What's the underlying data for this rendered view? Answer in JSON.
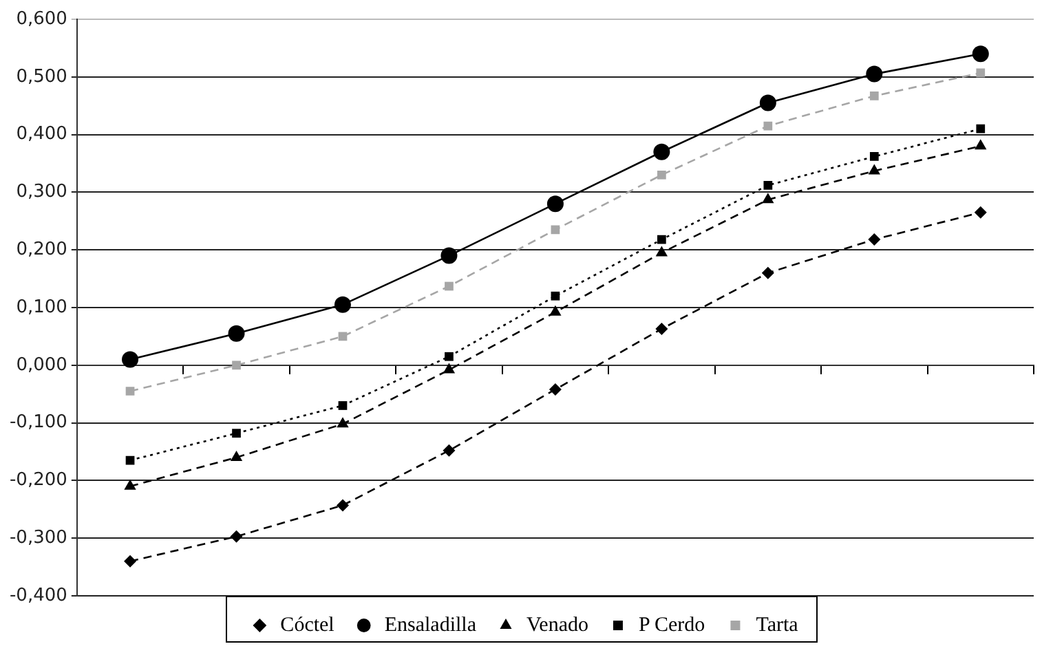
{
  "chart_data": {
    "type": "line",
    "categories": [
      null,
      null,
      null,
      null,
      null,
      null,
      null,
      null,
      null
    ],
    "ylim": [
      -0.4,
      0.6
    ],
    "yticks": [
      {
        "value": -0.4,
        "label": "-0,400"
      },
      {
        "value": -0.3,
        "label": "-0,300"
      },
      {
        "value": -0.2,
        "label": "-0,200"
      },
      {
        "value": -0.1,
        "label": "-0,100"
      },
      {
        "value": 0,
        "label": "0,000"
      },
      {
        "value": 0.1,
        "label": "0,100"
      },
      {
        "value": 0.2,
        "label": "0,200"
      },
      {
        "value": 0.3,
        "label": "0,300"
      },
      {
        "value": 0.4,
        "label": "0,400"
      },
      {
        "value": 0.5,
        "label": "0,500"
      },
      {
        "value": 0.6,
        "label": "0,600"
      }
    ],
    "grid": "y",
    "legend": "bottom",
    "series": [
      {
        "name": "Cóctel",
        "color": "#000000",
        "marker": "diamond",
        "line_style": "dashed",
        "values": [
          -0.34,
          -0.297,
          -0.243,
          -0.148,
          -0.042,
          0.063,
          0.16,
          0.218,
          0.265
        ]
      },
      {
        "name": "Ensaladilla",
        "color": "#000000",
        "marker": "circle",
        "line_style": "solid",
        "values": [
          0.01,
          0.055,
          0.105,
          0.19,
          0.28,
          0.37,
          0.455,
          0.505,
          0.54
        ]
      },
      {
        "name": "Venado",
        "color": "#000000",
        "marker": "triangle",
        "line_style": "dashed",
        "values": [
          -0.21,
          -0.16,
          -0.102,
          -0.008,
          0.092,
          0.195,
          0.287,
          0.337,
          0.38
        ]
      },
      {
        "name": "P Cerdo",
        "color": "#000000",
        "marker": "square",
        "line_style": "dotted",
        "values": [
          -0.165,
          -0.118,
          -0.07,
          0.015,
          0.12,
          0.218,
          0.312,
          0.362,
          0.41
        ]
      },
      {
        "name": "Tarta",
        "color": "#a6a6a6",
        "marker": "square",
        "line_style": "dashed",
        "values": [
          -0.045,
          0,
          0.05,
          0.137,
          0.235,
          0.33,
          0.415,
          0.467,
          0.507
        ]
      }
    ]
  }
}
